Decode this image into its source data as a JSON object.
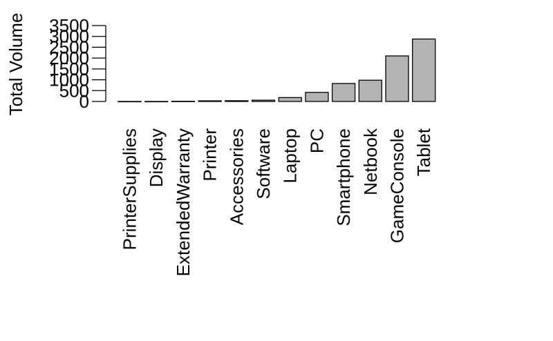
{
  "chart_data": {
    "type": "bar",
    "title": "",
    "xlabel": "",
    "ylabel": "Total Volume",
    "categories": [
      "PrinterSupplies",
      "Display",
      "ExtendedWarranty",
      "Printer",
      "Accessories",
      "Software",
      "Laptop",
      "PC",
      "Smartphone",
      "Netbook",
      "GameConsole",
      "Tablet"
    ],
    "values": [
      2,
      2,
      10,
      30,
      35,
      60,
      180,
      420,
      830,
      980,
      2100,
      2880
    ],
    "yticks": [
      0,
      500,
      1000,
      1500,
      2000,
      2500,
      3000,
      3500
    ],
    "ylim": [
      0,
      3500
    ],
    "bar_color": "#b3b3b3",
    "grid": false,
    "legend": "none"
  }
}
